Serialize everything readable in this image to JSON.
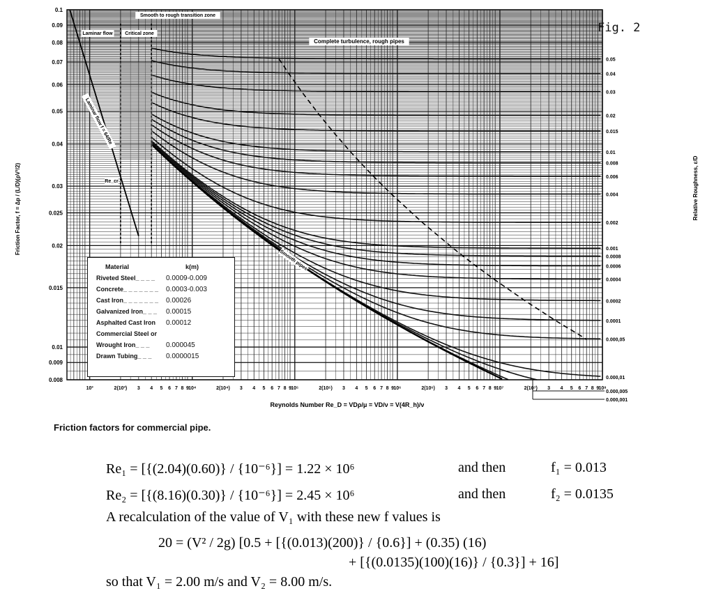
{
  "figure_label": "Fig. 2",
  "caption": "Friction factors for commercial pipe.",
  "chart_data": {
    "type": "line",
    "title": "",
    "xlabel": "Reynolds Number Re_D = VDρ/μ = VD/ν = V(4R_h)/ν",
    "ylabel": "Friction Factor, f = Δp / (L/D)(ρV²/2)",
    "y2label": "Relative Roughness, ε/D",
    "xscale": "log",
    "yscale": "log",
    "xlim": [
      600,
      100000000
    ],
    "ylim": [
      0.008,
      0.1
    ],
    "grid": true,
    "x_tick_labels": [
      "10³",
      "2(10³)",
      "3",
      "4",
      "5",
      "6",
      "7",
      "8",
      "9",
      "10⁴",
      "2(10⁴)",
      "3",
      "4",
      "5",
      "6",
      "7",
      "8",
      "9",
      "10⁵",
      "2(10⁵)",
      "3",
      "4",
      "5",
      "6",
      "7",
      "8",
      "9",
      "10⁶",
      "2(10⁶)",
      "3",
      "4",
      "5",
      "6",
      "7",
      "8",
      "9",
      "10⁷",
      "2(10⁷)",
      "3",
      "4",
      "5",
      "6",
      "7",
      "8",
      "9",
      "10⁸"
    ],
    "y_tick_labels": [
      "0.1",
      "0.09",
      "0.08",
      "0.07",
      "0.06",
      "0.05",
      "0.04",
      "0.03",
      "0.025",
      "0.02",
      "0.015",
      "0.01",
      "0.009",
      "0.008"
    ],
    "y_ticks": [
      0.1,
      0.09,
      0.08,
      0.07,
      0.06,
      0.05,
      0.04,
      0.03,
      0.025,
      0.02,
      0.015,
      0.01,
      0.009,
      0.008
    ],
    "roughness_labels": [
      "0.05",
      "0.04",
      "0.03",
      "0.02",
      "0.015",
      "0.01",
      "0.008",
      "0.006",
      "0.004",
      "0.002",
      "0.001",
      "0.0008",
      "0.0006",
      "0.0004",
      "0.0002",
      "0.0001",
      "0.000,05",
      "0.000,01",
      "0.000,005",
      "0.000,001"
    ],
    "roughness_values": [
      0.05,
      0.04,
      0.03,
      0.02,
      0.015,
      0.01,
      0.008,
      0.006,
      0.004,
      0.002,
      0.001,
      0.0008,
      0.0006,
      0.0004,
      0.0002,
      0.0001,
      5e-05,
      1e-05,
      5e-06,
      1e-06
    ],
    "annotations": {
      "laminar_zone": "Laminar flow",
      "critical_zone": "Critical zone",
      "transition_zone": "Smooth to rough transition zone",
      "turbulence": "Complete turbulence, rough pipes",
      "laminar_curve": "Laminar flow f = 64/Re",
      "critical_re": "Re_cr",
      "smooth": "Smooth pipes"
    },
    "laminar_f_formula": "64/Re",
    "legend": {
      "header_material": "Material",
      "header_k": "k(m)",
      "rows": [
        {
          "material": "Riveted Steel_ _ _ _",
          "k": "0.0009-0.009"
        },
        {
          "material": "Concrete_ _ _ _ _ _ _",
          "k": "0.0003-0.003"
        },
        {
          "material": "Cast Iron_ _ _ _ _ _ _",
          "k": "0.00026"
        },
        {
          "material": "Galvanized Iron_ _ _",
          "k": "0.00015"
        },
        {
          "material": "Asphalted Cast Iron",
          "k": "0.00012"
        },
        {
          "material": "Commercial Steel or",
          "k": ""
        },
        {
          "material": "Wrought Iron_ _ _",
          "k": "0.000045"
        },
        {
          "material": "Drawn Tubing_ _ _",
          "k": "0.0000015"
        }
      ]
    }
  },
  "equations": {
    "line1": "Re₁ = [{(2.04)(0.60)} / {10⁻⁶}] = 1.22 × 10⁶",
    "line1_then": "and then",
    "line1_f": "f₁ = 0.013",
    "line2": "Re₂ = [{(8.16)(0.30)} / {10⁻⁶}] = 2.45 × 10⁶",
    "line2_then": "and then",
    "line2_f": "f₂ = 0.0135",
    "line3": "A recalculation of the value of V₁ with these new f values is",
    "line4": "20 = (V² / 2g) [0.5 + [{(0.013)(200)} / {0.6}] + (0.35) (16)",
    "line5": "+ [{(0.0135)(100)(16)} / {0.3}] + 16]",
    "line6": "so that V₁ = 2.00 m/s and V₂ = 8.00 m/s."
  }
}
